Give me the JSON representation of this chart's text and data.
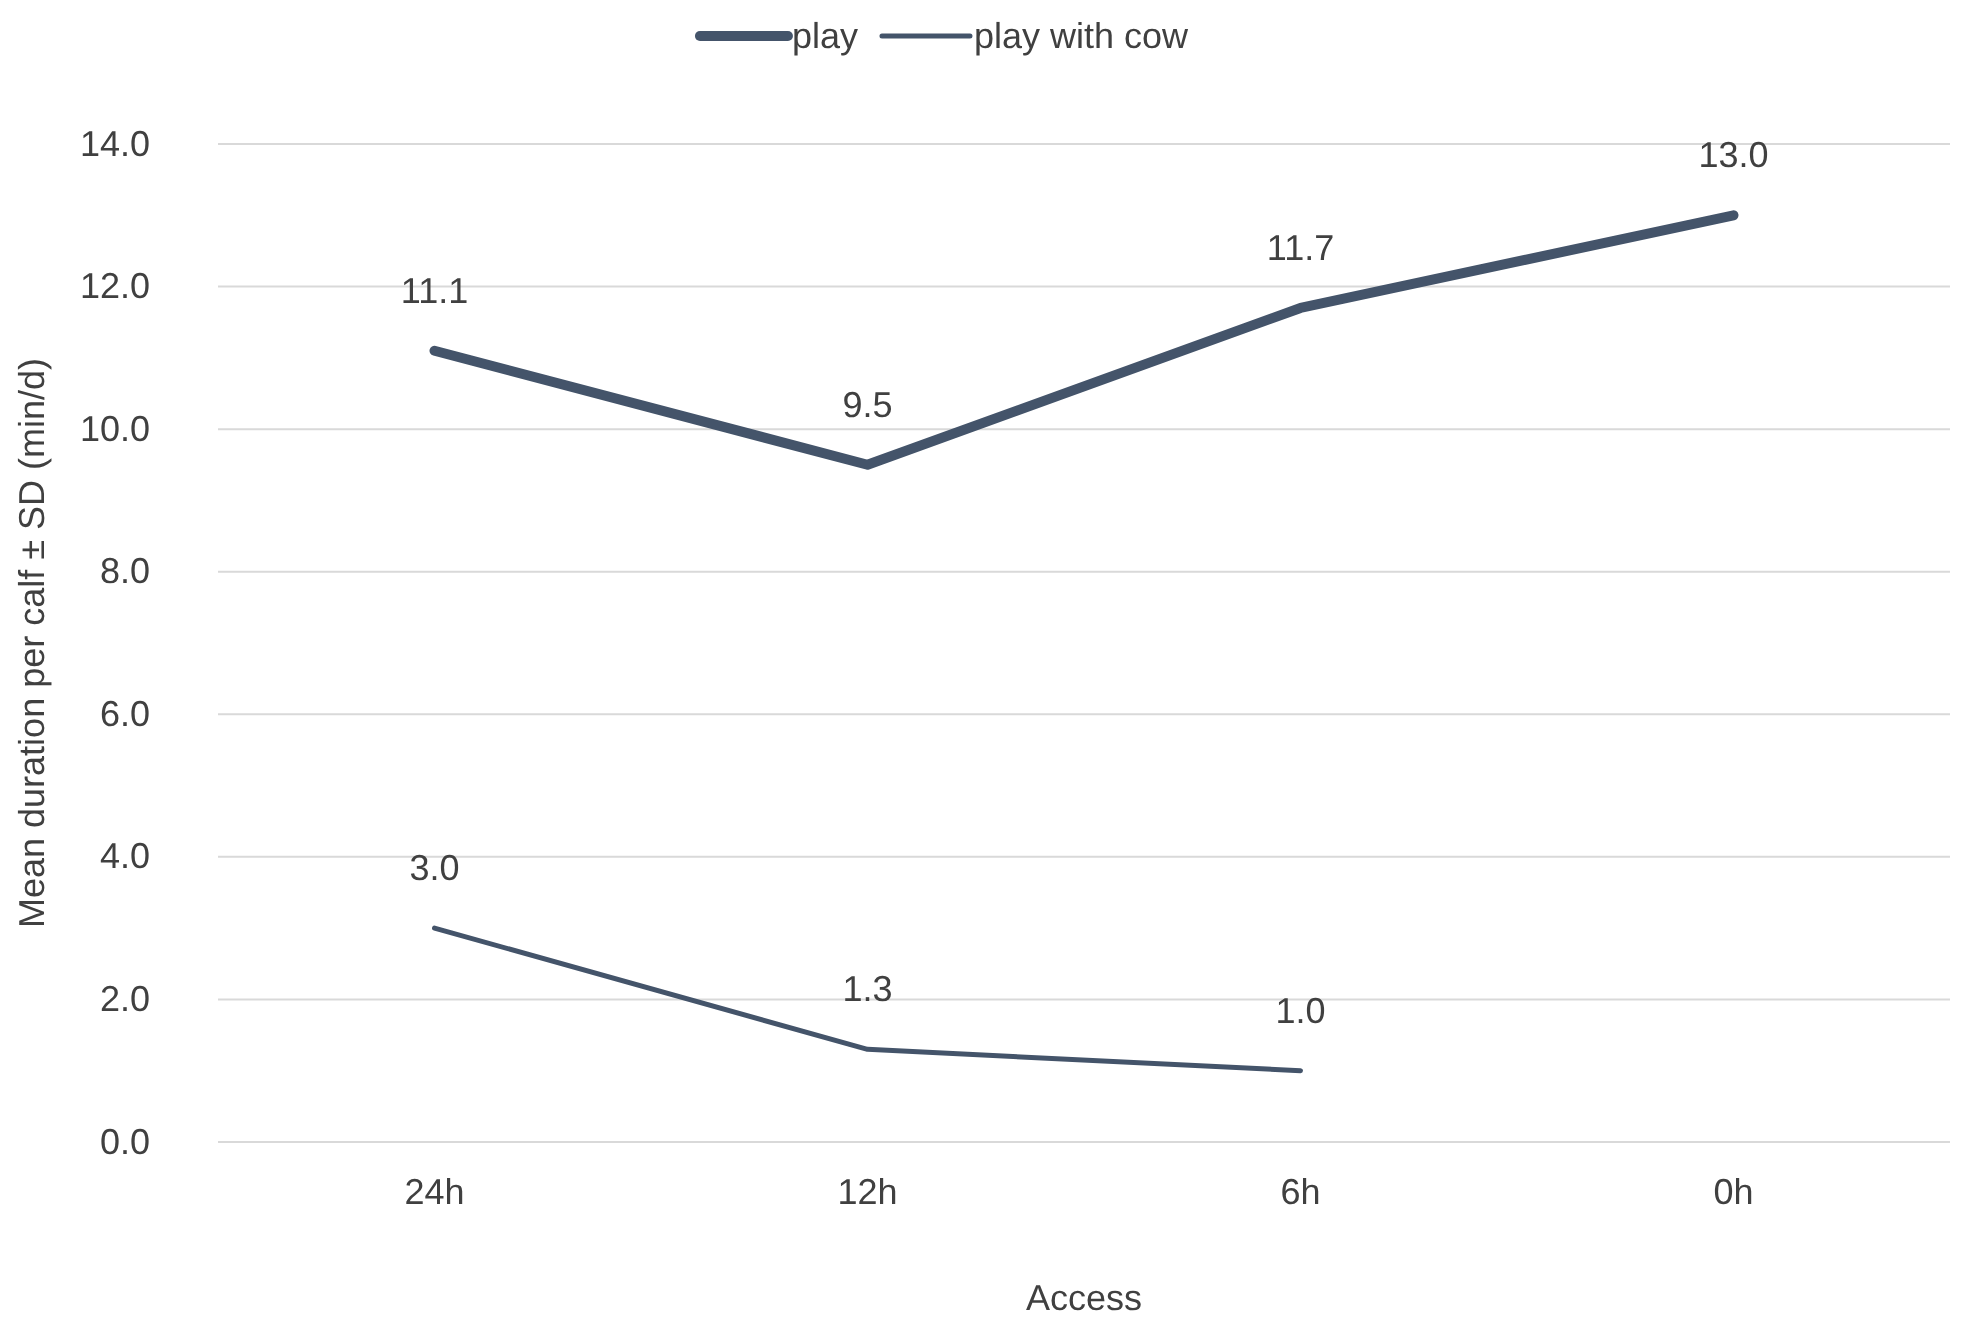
{
  "chart_data": {
    "type": "line",
    "xlabel": "Access",
    "ylabel": "Mean duration per calf ± SD (min/d)",
    "categories": [
      "24h",
      "12h",
      "6h",
      "0h"
    ],
    "series": [
      {
        "name": "play",
        "color": "#44546a",
        "values": [
          11.1,
          9.5,
          11.7,
          13.0
        ],
        "value_labels": [
          "11.1",
          "9.5",
          "11.7",
          "13.0"
        ]
      },
      {
        "name": "play with cow",
        "color": "#44546a",
        "values": [
          3.0,
          1.3,
          1.0,
          null
        ],
        "value_labels": [
          "3.0",
          "1.3",
          "1.0",
          null
        ]
      }
    ],
    "ylim": [
      0,
      14
    ],
    "yticks": [
      {
        "value": 0,
        "label": "0.0"
      },
      {
        "value": 2,
        "label": "2.0"
      },
      {
        "value": 4,
        "label": "4.0"
      },
      {
        "value": 6,
        "label": "6.0"
      },
      {
        "value": 8,
        "label": "8.0"
      },
      {
        "value": 10,
        "label": "10.0"
      },
      {
        "value": 12,
        "label": "12.0"
      },
      {
        "value": 14,
        "label": "14.0"
      }
    ],
    "grid": "y",
    "legend": "top",
    "marker": "none"
  }
}
